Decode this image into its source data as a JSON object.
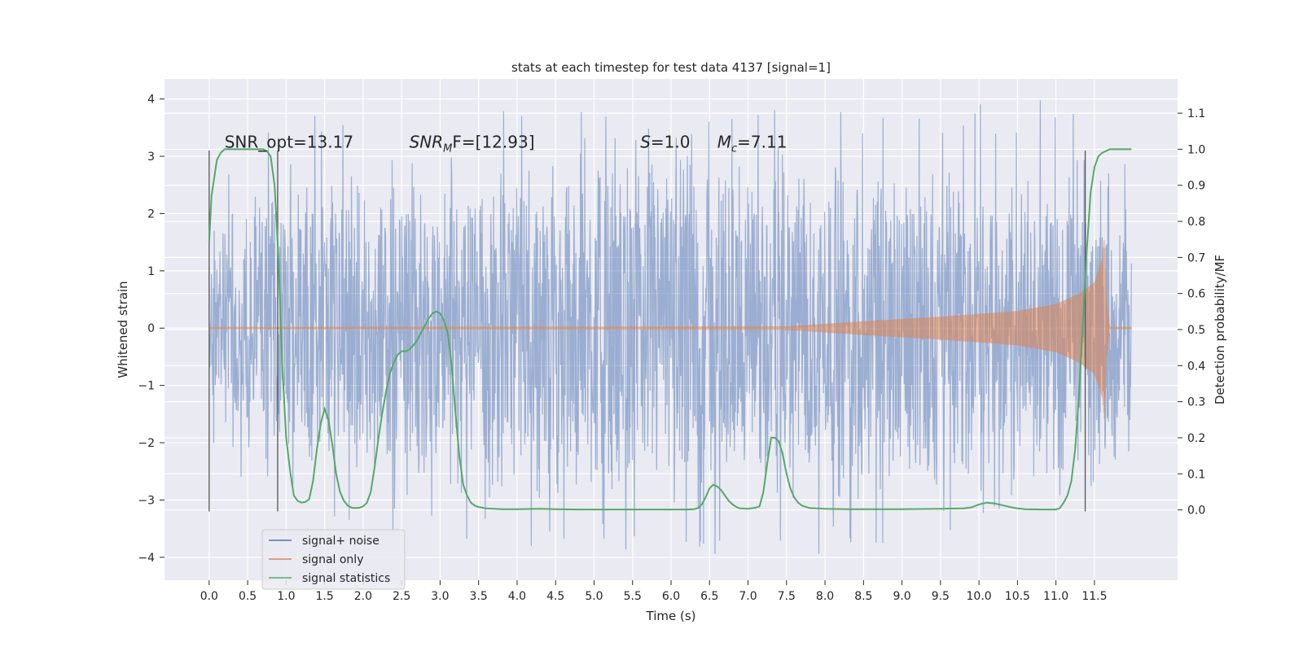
{
  "chart_data": {
    "type": "line",
    "title": "stats at each timestep for test data 4137 [signal=1]",
    "xlabel": "Time (s)",
    "ylabel": "Whitened strain",
    "ylabel_right": "Detection probability/MF",
    "xlim": [
      -0.58,
      12.58
    ],
    "ylim": [
      -4.4,
      4.35
    ],
    "ylim_right": [
      -0.195,
      1.195
    ],
    "x_ticks": [
      0.0,
      0.5,
      1.0,
      1.5,
      2.0,
      2.5,
      3.0,
      3.5,
      4.0,
      4.5,
      5.0,
      5.5,
      6.0,
      6.5,
      7.0,
      7.5,
      8.0,
      8.5,
      9.0,
      9.5,
      10.0,
      10.5,
      11.0,
      11.5
    ],
    "x_tick_labels": [
      "0.0",
      "0.5",
      "1.0",
      "1.5",
      "2.0",
      "2.5",
      "3.0",
      "3.5",
      "4.0",
      "4.5",
      "5.0",
      "5.5",
      "6.0",
      "6.5",
      "7.0",
      "7.5",
      "8.0",
      "8.5",
      "9.0",
      "9.5",
      "10.0",
      "10.5",
      "11.0",
      "11.5"
    ],
    "y_ticks": [
      -4,
      -3,
      -2,
      -1,
      0,
      1,
      2,
      3,
      4
    ],
    "y_tick_labels": [
      "−4",
      "−3",
      "−2",
      "−1",
      "0",
      "1",
      "2",
      "3",
      "4"
    ],
    "y_right_ticks": [
      0.0,
      0.1,
      0.2,
      0.3,
      0.4,
      0.5,
      0.6,
      0.7,
      0.8,
      0.9,
      1.0,
      1.1
    ],
    "y_right_tick_labels": [
      "0.0",
      "0.1",
      "0.2",
      "0.3",
      "0.4",
      "0.5",
      "0.6",
      "0.7",
      "0.8",
      "0.9",
      "1.0",
      "1.1"
    ],
    "grid": true,
    "legend_position": "lower-left",
    "series": [
      {
        "name": "signal+ noise",
        "color": "#4c72b0",
        "axis": "left",
        "kind": "noise",
        "x_range": [
          0.0,
          11.98
        ],
        "envelope_upper": [
          [
            0.0,
            2.9
          ],
          [
            1.0,
            3.8
          ],
          [
            3.7,
            3.8
          ],
          [
            8.5,
            3.95
          ],
          [
            11.4,
            4.0
          ],
          [
            11.98,
            3.0
          ]
        ],
        "envelope_lower": [
          [
            0.0,
            -2.3
          ],
          [
            1.2,
            -3.4
          ],
          [
            2.6,
            -3.6
          ],
          [
            5.8,
            -4.1
          ],
          [
            9.0,
            -3.9
          ],
          [
            11.98,
            -2.2
          ]
        ]
      },
      {
        "name": "signal only",
        "color": "#dd8452",
        "axis": "left",
        "kind": "chirp",
        "amplitude": [
          [
            0.0,
            0.02
          ],
          [
            7.5,
            0.03
          ],
          [
            8.5,
            0.12
          ],
          [
            9.5,
            0.2
          ],
          [
            10.5,
            0.3
          ],
          [
            11.0,
            0.42
          ],
          [
            11.3,
            0.6
          ],
          [
            11.5,
            0.8
          ],
          [
            11.6,
            1.2
          ],
          [
            11.63,
            1.6
          ],
          [
            11.66,
            0.5
          ],
          [
            11.7,
            0.02
          ],
          [
            11.98,
            0.02
          ]
        ]
      },
      {
        "name": "signal statistics",
        "color": "#55a868",
        "axis": "right",
        "x": [
          0.0,
          0.03,
          0.1,
          0.15,
          0.2,
          0.3,
          0.4,
          0.5,
          0.6,
          0.7,
          0.75,
          0.8,
          0.85,
          0.9,
          0.95,
          1.0,
          1.05,
          1.1,
          1.15,
          1.2,
          1.25,
          1.3,
          1.35,
          1.4,
          1.45,
          1.5,
          1.55,
          1.6,
          1.65,
          1.7,
          1.75,
          1.8,
          1.85,
          1.9,
          1.95,
          2.0,
          2.05,
          2.1,
          2.15,
          2.2,
          2.25,
          2.3,
          2.35,
          2.4,
          2.45,
          2.5,
          2.55,
          2.6,
          2.65,
          2.7,
          2.75,
          2.8,
          2.85,
          2.9,
          2.95,
          3.0,
          3.05,
          3.1,
          3.15,
          3.2,
          3.25,
          3.3,
          3.35,
          3.4,
          3.45,
          3.5,
          3.6,
          3.7,
          3.8,
          4.0,
          4.3,
          4.5,
          4.8,
          5.0,
          5.3,
          5.5,
          5.8,
          6.0,
          6.2,
          6.3,
          6.35,
          6.4,
          6.45,
          6.5,
          6.55,
          6.6,
          6.65,
          6.7,
          6.75,
          6.8,
          6.85,
          6.9,
          7.0,
          7.1,
          7.15,
          7.2,
          7.25,
          7.3,
          7.35,
          7.4,
          7.45,
          7.5,
          7.55,
          7.6,
          7.65,
          7.7,
          7.8,
          7.9,
          8.0,
          8.3,
          8.6,
          9.0,
          9.5,
          9.8,
          9.9,
          10.0,
          10.1,
          10.2,
          10.3,
          10.4,
          10.5,
          10.6,
          10.8,
          11.0,
          11.05,
          11.1,
          11.15,
          11.2,
          11.25,
          11.3,
          11.35,
          11.4,
          11.45,
          11.5,
          11.55,
          11.6,
          11.7,
          11.8,
          11.9,
          11.98
        ],
        "values": [
          0.74,
          0.87,
          0.97,
          0.99,
          1.0,
          1.0,
          1.0,
          1.0,
          1.0,
          1.0,
          0.995,
          0.98,
          0.9,
          0.7,
          0.4,
          0.2,
          0.11,
          0.04,
          0.025,
          0.02,
          0.022,
          0.03,
          0.08,
          0.17,
          0.24,
          0.28,
          0.25,
          0.18,
          0.1,
          0.05,
          0.025,
          0.012,
          0.006,
          0.005,
          0.006,
          0.01,
          0.02,
          0.05,
          0.12,
          0.2,
          0.27,
          0.33,
          0.38,
          0.41,
          0.43,
          0.44,
          0.44,
          0.445,
          0.455,
          0.47,
          0.49,
          0.51,
          0.53,
          0.545,
          0.55,
          0.545,
          0.525,
          0.49,
          0.4,
          0.27,
          0.15,
          0.07,
          0.04,
          0.02,
          0.012,
          0.008,
          0.004,
          0.003,
          0.002,
          0.002,
          0.003,
          0.002,
          0.001,
          0.001,
          0.001,
          0.001,
          0.001,
          0.001,
          0.001,
          0.002,
          0.005,
          0.015,
          0.035,
          0.06,
          0.07,
          0.065,
          0.055,
          0.04,
          0.025,
          0.015,
          0.008,
          0.004,
          0.003,
          0.006,
          0.01,
          0.05,
          0.13,
          0.2,
          0.2,
          0.19,
          0.155,
          0.1,
          0.06,
          0.035,
          0.02,
          0.012,
          0.005,
          0.004,
          0.003,
          0.002,
          0.002,
          0.002,
          0.003,
          0.004,
          0.007,
          0.015,
          0.02,
          0.018,
          0.013,
          0.008,
          0.004,
          0.002,
          0.001,
          0.001,
          0.005,
          0.02,
          0.04,
          0.08,
          0.17,
          0.32,
          0.52,
          0.72,
          0.88,
          0.95,
          0.98,
          0.99,
          1.0,
          1.0,
          1.0,
          1.0
        ]
      }
    ],
    "vertical_lines": [
      {
        "x": 0.0,
        "ymin": -3.2,
        "ymax": 3.1
      },
      {
        "x": 0.89,
        "ymin": -3.2,
        "ymax": 3.1
      },
      {
        "x": 11.38,
        "ymin": -3.2,
        "ymax": 3.1
      }
    ],
    "annotations": [
      {
        "x": 0.2,
        "y": 3.15,
        "text": "SNR_opt=13.17"
      },
      {
        "x": 2.6,
        "y": 3.15,
        "main": "SNR",
        "sub": "M",
        "rest": "F=[12.93]"
      },
      {
        "x": 5.6,
        "y": 3.15,
        "main": "S",
        "sub": "",
        "rest": "=1.0"
      },
      {
        "x": 6.6,
        "y": 3.15,
        "main": "M",
        "sub": "c",
        "rest": "=7.11"
      }
    ]
  }
}
